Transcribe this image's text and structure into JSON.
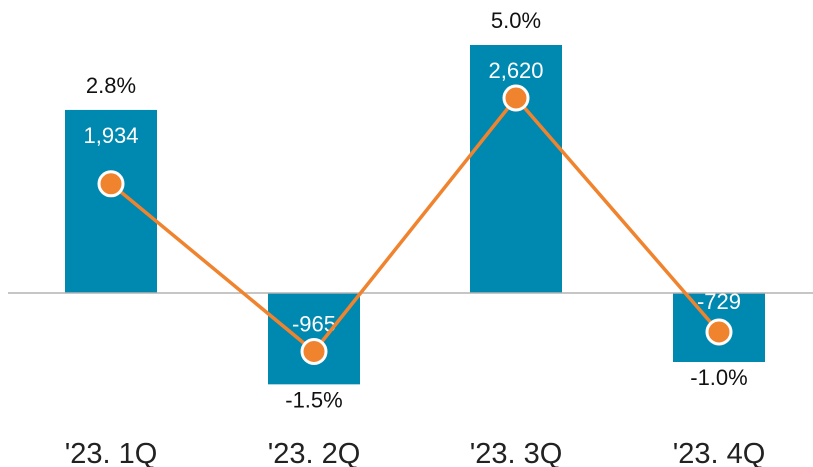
{
  "colors": {
    "bar": "#0089b0",
    "line": "#f0832e",
    "marker_fill": "#f0832e",
    "marker_stroke": "#ffffff",
    "axis": "#b3b3b3"
  },
  "chart_data": {
    "type": "bar",
    "categories": [
      "'23. 1Q",
      "'23. 2Q",
      "'23. 3Q",
      "'23. 4Q"
    ],
    "bar_values": [
      1934,
      -965,
      2620,
      -729
    ],
    "bar_labels": [
      "1,934",
      "-965",
      "2,620",
      "-729"
    ],
    "line_values": [
      2.8,
      -1.5,
      5.0,
      -1.0
    ],
    "line_labels": [
      "2.8%",
      "-1.5%",
      "5.0%",
      "-1.0%"
    ],
    "grid": false,
    "legend": "none"
  }
}
